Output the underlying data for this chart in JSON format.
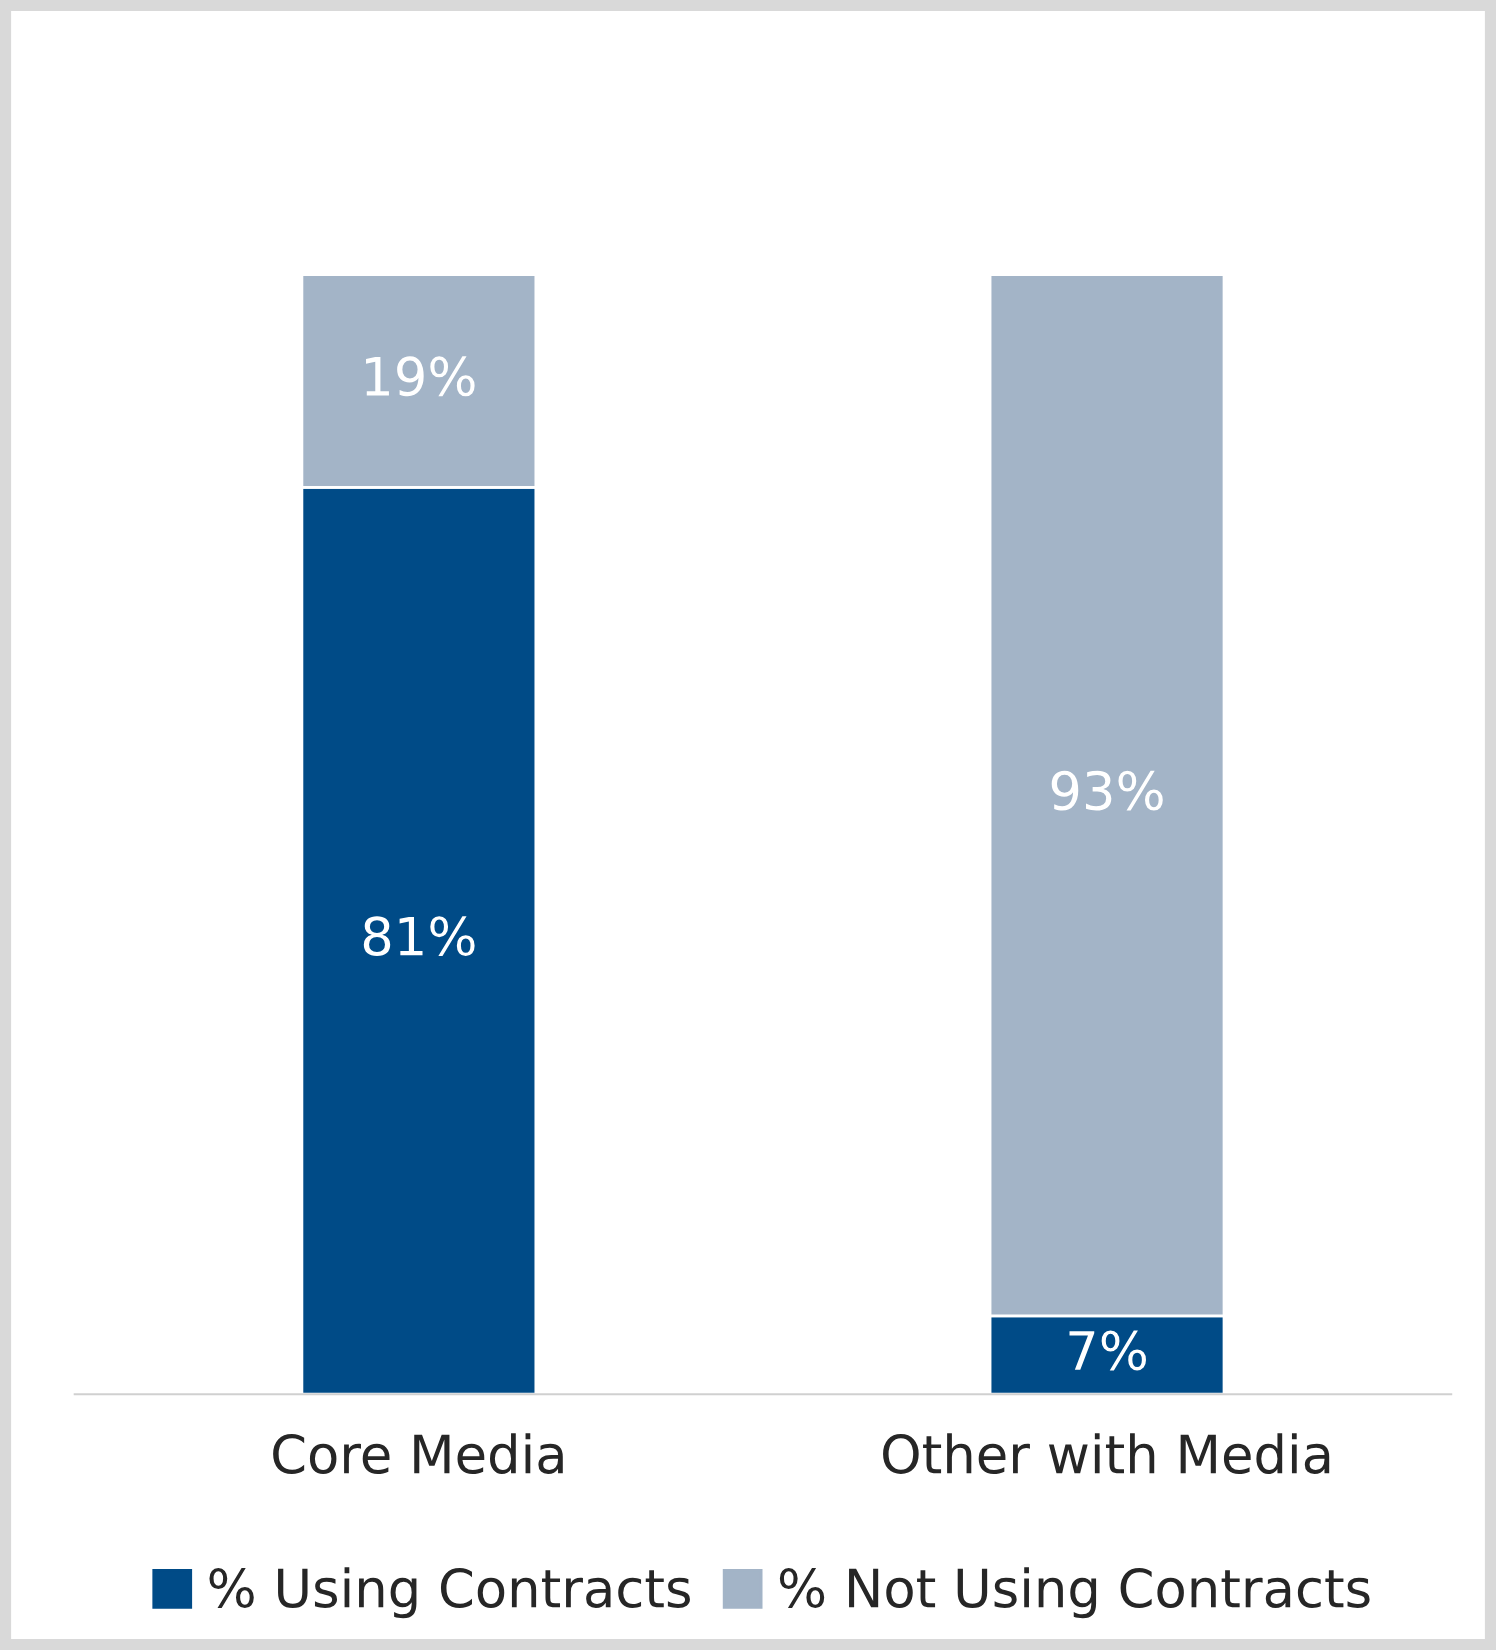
{
  "chart_data": {
    "type": "bar",
    "stacked": true,
    "categories": [
      "Core Media",
      "Other with Media"
    ],
    "series": [
      {
        "name": "% Using Contracts",
        "color": "#004b87",
        "values": [
          81,
          7
        ],
        "value_labels": [
          "81%",
          "7%"
        ]
      },
      {
        "name": "% Not Using Contracts",
        "color": "#a3b4c7",
        "values": [
          19,
          93
        ],
        "value_labels": [
          "19%",
          "93%"
        ]
      }
    ],
    "legend": "bottom",
    "grid": false
  }
}
